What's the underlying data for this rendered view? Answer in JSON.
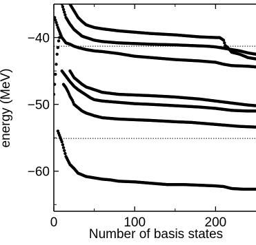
{
  "chart_data": {
    "type": "scatter",
    "title": "",
    "xlabel": "Number of basis states",
    "ylabel": "energy (MeV)",
    "xlim": [
      0,
      250
    ],
    "ylim": [
      -66,
      -35
    ],
    "x_ticks": [
      0,
      100,
      200
    ],
    "y_ticks": [
      -40,
      -50,
      -60
    ],
    "x_tick_labels": [
      "0",
      "100",
      "200"
    ],
    "y_tick_labels": [
      "−40",
      "−50",
      "−60"
    ],
    "grid": false,
    "marker_color": "#000000",
    "reference_lines": [
      {
        "y": -41.3,
        "style": "dotted"
      },
      {
        "y": -55.1,
        "style": "dotted"
      }
    ],
    "series": [
      {
        "x": [
          5,
          10,
          15,
          20,
          25,
          30,
          40,
          50,
          60,
          70,
          80,
          100,
          120,
          140,
          160,
          180,
          200,
          210,
          220,
          235,
          250
        ],
        "y": [
          -54.0,
          -55.6,
          -57.8,
          -59.0,
          -59.6,
          -60.3,
          -60.8,
          -61.0,
          -61.2,
          -61.3,
          -61.5,
          -61.6,
          -61.8,
          -62.0,
          -62.0,
          -62.1,
          -62.2,
          -62.3,
          -62.6,
          -62.7,
          -62.7
        ]
      },
      {
        "x": [
          12,
          15,
          18,
          20,
          23,
          25,
          30,
          35,
          40,
          50,
          60,
          80,
          100,
          120,
          150,
          170,
          180,
          200,
          220,
          230,
          250
        ],
        "y": [
          -47.0,
          -47.5,
          -48.2,
          -48.8,
          -49.4,
          -50.0,
          -50.5,
          -51.0,
          -51.3,
          -51.7,
          -52.0,
          -52.2,
          -52.3,
          -52.4,
          -52.6,
          -52.7,
          -52.8,
          -53.0,
          -53.2,
          -53.3,
          -53.4
        ]
      },
      {
        "x": [
          10,
          15,
          20,
          25,
          30,
          35,
          40,
          45,
          50,
          60,
          80,
          100,
          120,
          150,
          180,
          200,
          220,
          240,
          250
        ],
        "y": [
          -45.0,
          -45.8,
          -46.6,
          -47.3,
          -47.8,
          -48.2,
          -48.6,
          -49.0,
          -49.3,
          -49.5,
          -49.7,
          -49.9,
          -50.0,
          -50.2,
          -50.4,
          -50.6,
          -50.9,
          -51.0,
          -51.0
        ]
      },
      {
        "x": [
          20,
          25,
          30,
          35,
          40,
          50,
          60,
          80,
          100,
          120,
          150,
          180,
          200,
          220,
          240,
          250
        ],
        "y": [
          -45.0,
          -46.0,
          -46.5,
          -47.0,
          -47.4,
          -47.8,
          -48.2,
          -48.5,
          -48.6,
          -48.7,
          -48.9,
          -49.2,
          -49.5,
          -49.8,
          -50.1,
          -50.2
        ]
      },
      {
        "x": [
          1,
          5,
          10,
          15,
          20,
          25,
          30,
          40,
          50,
          60,
          80,
          100,
          120,
          150,
          180,
          200,
          210,
          220,
          240,
          250
        ],
        "y": [
          -37.0,
          -38.5,
          -40.0,
          -40.8,
          -41.0,
          -41.3,
          -41.5,
          -41.8,
          -42.0,
          -42.1,
          -42.4,
          -42.8,
          -43.0,
          -43.3,
          -43.5,
          -43.7,
          -44.0,
          -44.2,
          -44.3,
          -44.4
        ]
      },
      {
        "x": [
          10,
          15,
          20,
          25,
          30,
          35,
          40,
          45,
          50,
          60,
          80,
          100,
          120,
          150,
          170,
          190,
          200,
          210,
          220,
          230,
          240,
          250
        ],
        "y": [
          -35.0,
          -37.0,
          -38.0,
          -38.8,
          -39.3,
          -39.8,
          -40.0,
          -40.2,
          -40.4,
          -40.6,
          -40.8,
          -40.9,
          -41.0,
          -41.1,
          -41.2,
          -41.3,
          -41.4,
          -41.6,
          -41.8,
          -42.0,
          -42.3,
          -42.5
        ]
      },
      {
        "x": [
          20,
          25,
          30,
          35,
          40,
          50,
          60,
          80,
          100,
          120,
          150,
          170,
          180,
          200,
          205,
          210,
          212,
          215,
          220,
          230,
          240,
          250
        ],
        "y": [
          -35.0,
          -36.0,
          -37.0,
          -37.6,
          -38.1,
          -38.5,
          -38.7,
          -39.0,
          -39.2,
          -39.4,
          -39.6,
          -39.8,
          -39.9,
          -40.0,
          -40.0,
          -40.4,
          -41.2,
          -41.5,
          -42.2,
          -42.5,
          -43.0,
          -43.2
        ]
      },
      {
        "x": [
          0,
          1,
          2,
          3,
          4,
          5,
          6,
          8
        ],
        "y": [
          -48.5,
          -47.0,
          -45.5,
          -44.0,
          -42.5,
          -41.5,
          -40.5,
          -39.5
        ]
      }
    ]
  }
}
